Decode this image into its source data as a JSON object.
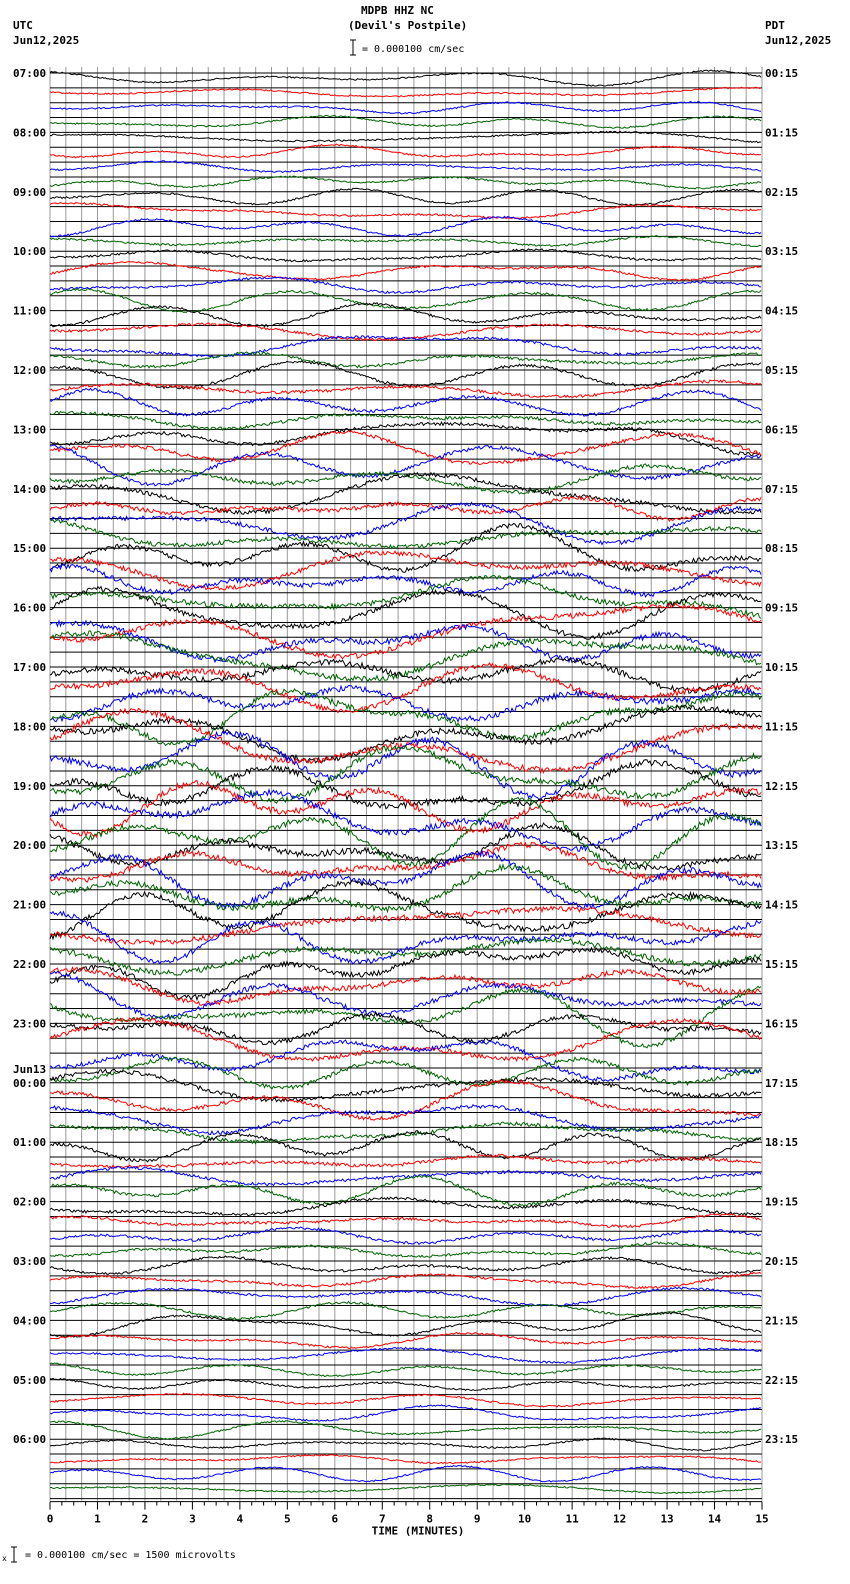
{
  "header": {
    "station": "MDPB HHZ NC",
    "location": "(Devil's Postpile)",
    "scale_text": "= 0.000100 cm/sec",
    "left_zone": "UTC",
    "left_date": "Jun12,2025",
    "right_zone": "PDT",
    "right_date": "Jun12,2025"
  },
  "footer": {
    "scale_text": "= 0.000100 cm/sec =    1500 microvolts"
  },
  "chart_data": {
    "type": "line",
    "title": "MDPB HHZ NC (Devil's Postpile)",
    "xlabel": "TIME (MINUTES)",
    "xlim": [
      0,
      15
    ],
    "x_ticks": [
      "0",
      "1",
      "2",
      "3",
      "4",
      "5",
      "6",
      "7",
      "8",
      "9",
      "10",
      "11",
      "12",
      "13",
      "14",
      "15"
    ],
    "trace_colors": [
      "#000000",
      "#ff0000",
      "#0000ff",
      "#006400"
    ],
    "rows_per_hour": 4,
    "left_hour_labels": [
      "07:00",
      "08:00",
      "09:00",
      "10:00",
      "11:00",
      "12:00",
      "13:00",
      "14:00",
      "15:00",
      "16:00",
      "17:00",
      "18:00",
      "19:00",
      "20:00",
      "21:00",
      "22:00",
      "23:00",
      "00:00",
      "01:00",
      "02:00",
      "03:00",
      "04:00",
      "05:00",
      "06:00"
    ],
    "date_change_label": "Jun13",
    "date_change_index": 17,
    "right_hour_labels": [
      "00:15",
      "01:15",
      "02:15",
      "03:15",
      "04:15",
      "05:15",
      "06:15",
      "07:15",
      "08:15",
      "09:15",
      "10:15",
      "11:15",
      "12:15",
      "13:15",
      "14:15",
      "15:15",
      "16:15",
      "17:15",
      "18:15",
      "19:15",
      "20:15",
      "21:15",
      "22:15",
      "23:15"
    ]
  }
}
